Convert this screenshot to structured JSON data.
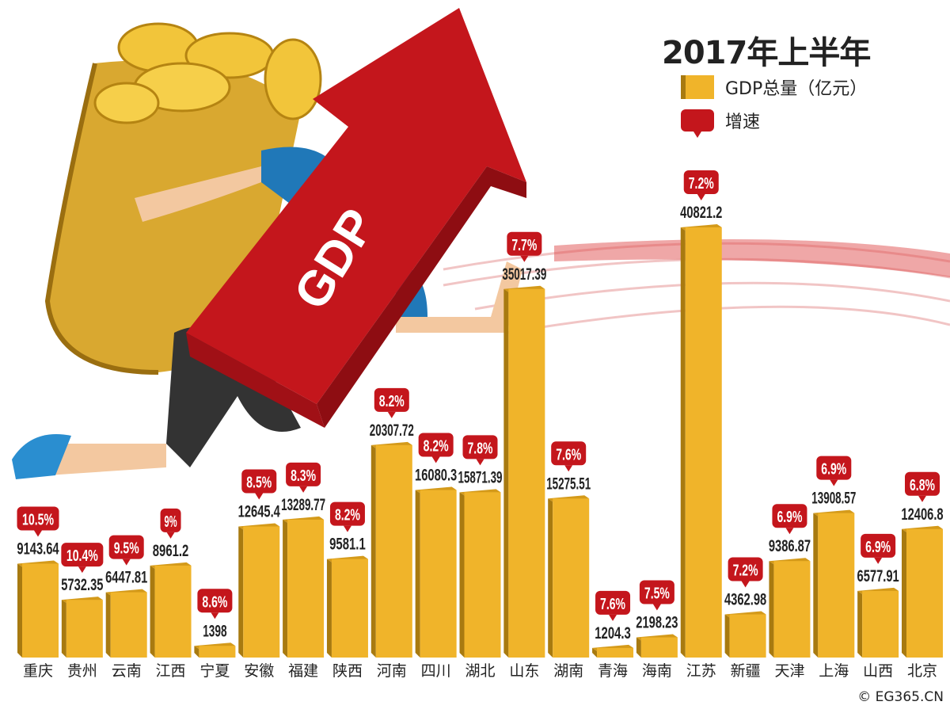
{
  "title": "2017年上半年",
  "legend": {
    "gdp": "GDP总量（亿元）",
    "growth": "增速"
  },
  "illustration_text": "GDP",
  "copyright": "© EG365.CN",
  "colors": {
    "bar": "#f0b42a",
    "bar_side": "#a87a10",
    "badge": "#c4161c"
  },
  "chart_data": {
    "type": "bar",
    "title": "2017年上半年",
    "categories": [
      "重庆",
      "贵州",
      "云南",
      "江西",
      "宁夏",
      "安徽",
      "福建",
      "陕西",
      "河南",
      "四川",
      "湖北",
      "山东",
      "湖南",
      "青海",
      "海南",
      "江苏",
      "新疆",
      "天津",
      "上海",
      "山西",
      "北京"
    ],
    "series": [
      {
        "name": "GDP总量（亿元）",
        "values": [
          9143.64,
          5732.35,
          6447.81,
          8961.2,
          1398,
          12645.4,
          13289.77,
          9581.1,
          20307.72,
          16080.3,
          15871.39,
          35017.39,
          15275.51,
          1204.3,
          2198.23,
          40821.2,
          4362.98,
          9386.87,
          13908.57,
          6577.91,
          12406.8
        ]
      },
      {
        "name": "增速",
        "values": [
          "10.5%",
          "10.4%",
          "9.5%",
          "9%",
          "8.6%",
          "8.5%",
          "8.3%",
          "8.2%",
          "8.2%",
          "8.2%",
          "7.8%",
          "7.7%",
          "7.6%",
          "7.6%",
          "7.5%",
          "7.2%",
          "7.2%",
          "6.9%",
          "6.9%",
          "6.9%",
          "6.8%"
        ]
      }
    ],
    "value_labels": [
      "9143.64",
      "5732.35",
      "6447.81",
      "8961.2",
      "1398",
      "12645.4",
      "13289.77",
      "9581.1",
      "20307.72",
      "16080.3",
      "15871.39",
      "35017.39",
      "15275.51",
      "1204.3",
      "2198.23",
      "40821.2",
      "4362.98",
      "9386.87",
      "13908.57",
      "6577.91",
      "12406.8"
    ],
    "legend_position": "top-right",
    "grid": false
  }
}
